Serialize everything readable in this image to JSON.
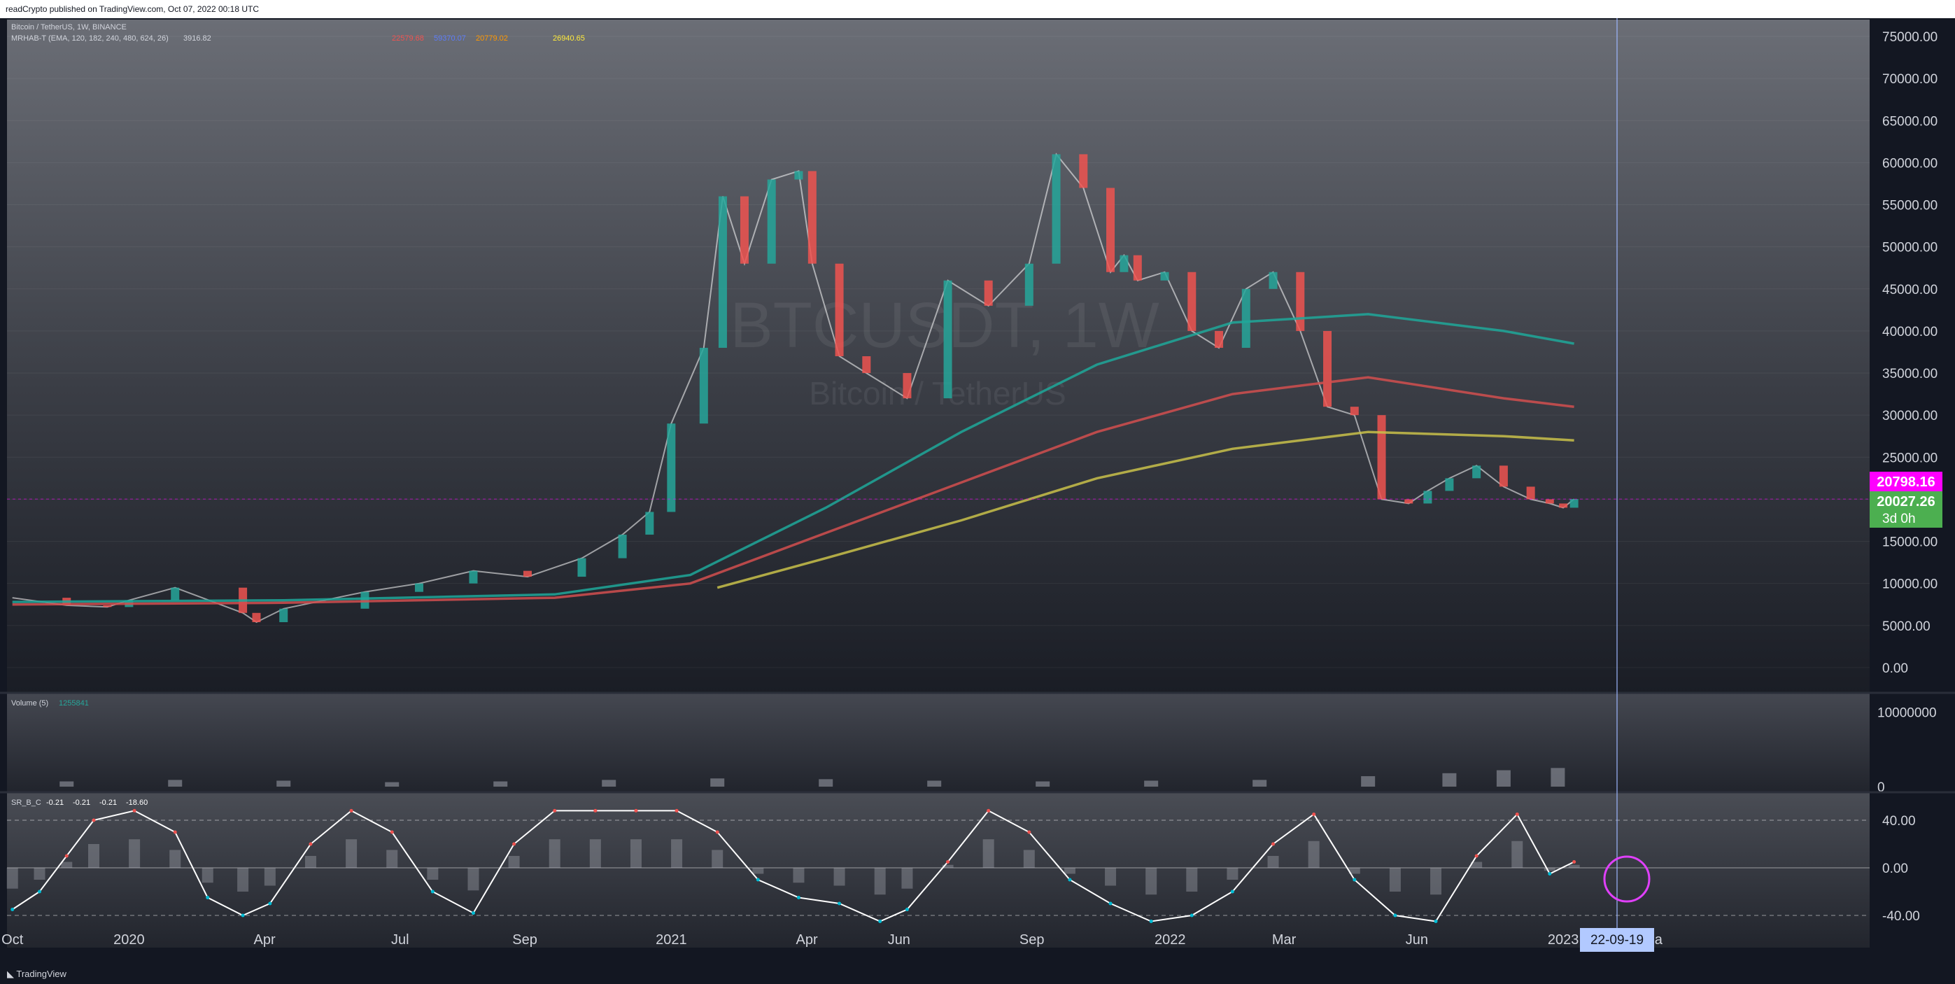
{
  "header": {
    "publisher_line": "readCrypto published on TradingView.com, Oct 07, 2022 00:18 UTC"
  },
  "footer": {
    "brand": "TradingView"
  },
  "legend": {
    "symbol_line": "Bitcoin / TetherUS, 1W, BINANCE",
    "indicator_line": "MRHAB-T (EMA, 120, 182, 240, 480, 624, 26)",
    "indicator_values": [
      "3916.82",
      "22579.68",
      "59370.07",
      "20779.02",
      "26940.65"
    ],
    "volume_label": "Volume (5)",
    "volume_value": "1255841",
    "osc_label": "SR_B_C",
    "osc_values": [
      "-0.21",
      "-0.21",
      "-0.21",
      "-18.60"
    ]
  },
  "watermark": {
    "symbol": "BTCUSDT, 1W",
    "name": "Bitcoin / TetherUS"
  },
  "price_tags": {
    "alert": "20798.16",
    "last": "20027.26",
    "countdown": "3d 0h"
  },
  "cursor_date": "22-09-19",
  "colors": {
    "background": "#131722",
    "up": "#26a69a",
    "down": "#ef5350",
    "text": "#d1d4dc",
    "ema_cyan": "#1fa89a",
    "ema_red": "#d24f4f",
    "ema_yellow": "#c9c14a",
    "alert_tag": "#ff00ff",
    "last_tag": "#4caf50",
    "osc_line_up": "#ffffff",
    "osc_line_down": "#00bcd4"
  },
  "chart_data": [
    {
      "type": "line",
      "panel": "price",
      "title": "BTCUSDT, 1W",
      "y_ticks": [
        0,
        5000,
        10000,
        15000,
        20000,
        25000,
        30000,
        35000,
        40000,
        45000,
        50000,
        55000,
        60000,
        65000,
        70000,
        75000
      ],
      "y_tick_labels": [
        "0.00",
        "5000.00",
        "10000.00",
        "15000.00",
        "20000.00",
        "25000.00",
        "30000.00",
        "35000.00",
        "40000.00",
        "45000.00",
        "50000.00",
        "55000.00",
        "60000.00",
        "65000.00",
        "70000.00",
        "75000.00"
      ],
      "ylim": [
        -3000,
        77000
      ],
      "x_ticks": [
        "Oct",
        "2020",
        "Apr",
        "Jul",
        "Sep",
        "2021",
        "Apr",
        "Jun",
        "Sep",
        "2022",
        "Mar",
        "Jun",
        "2023",
        "Ma"
      ],
      "x_tick_pos": [
        0.0,
        0.43,
        0.93,
        1.43,
        1.89,
        2.43,
        2.93,
        3.27,
        3.76,
        4.27,
        4.69,
        5.18,
        5.72,
        6.05
      ],
      "xlim": [
        -0.02,
        6.85
      ],
      "series": [
        {
          "name": "close",
          "role": "price",
          "x": [
            0.0,
            0.2,
            0.35,
            0.43,
            0.6,
            0.85,
            0.9,
            1.0,
            1.3,
            1.5,
            1.7,
            1.9,
            2.1,
            2.25,
            2.35,
            2.43,
            2.55,
            2.62,
            2.7,
            2.8,
            2.9,
            2.95,
            3.05,
            3.15,
            3.3,
            3.45,
            3.6,
            3.75,
            3.85,
            3.95,
            4.05,
            4.1,
            4.15,
            4.25,
            4.35,
            4.45,
            4.55,
            4.65,
            4.75,
            4.85,
            4.95,
            5.05,
            5.15,
            5.22,
            5.3,
            5.4,
            5.5,
            5.6,
            5.67,
            5.72,
            5.76
          ],
          "values": [
            8300,
            7400,
            7200,
            8000,
            9500,
            6500,
            5400,
            7000,
            9000,
            10000,
            11500,
            10800,
            13000,
            15800,
            18500,
            29000,
            38000,
            56000,
            48000,
            58000,
            59000,
            48000,
            37000,
            35000,
            32000,
            46000,
            43000,
            48000,
            61000,
            57000,
            47000,
            49000,
            46000,
            47000,
            40000,
            38000,
            45000,
            47000,
            40000,
            31000,
            30000,
            20000,
            19500,
            21000,
            22500,
            24000,
            21500,
            20000,
            19500,
            19000,
            20027
          ]
        },
        {
          "name": "EMA 120",
          "role": "ema",
          "x": [
            0,
            1,
            2,
            2.5,
            3,
            3.5,
            4,
            4.5,
            5,
            5.5,
            5.76
          ],
          "values": [
            7800,
            8000,
            8700,
            11000,
            19000,
            28000,
            36000,
            41000,
            42000,
            40000,
            38500
          ]
        },
        {
          "name": "EMA 182",
          "role": "ema",
          "x": [
            0,
            1,
            2,
            2.5,
            3,
            3.5,
            4,
            4.5,
            5,
            5.5,
            5.76
          ],
          "values": [
            7500,
            7700,
            8300,
            10000,
            16000,
            22000,
            28000,
            32500,
            34500,
            32000,
            31000
          ]
        },
        {
          "name": "EMA 240",
          "role": "ema",
          "x": [
            2.6,
            3,
            3.5,
            4,
            4.5,
            5,
            5.5,
            5.76
          ],
          "values": [
            9500,
            13000,
            17500,
            22500,
            26000,
            28000,
            27500,
            27000
          ]
        }
      ]
    },
    {
      "type": "bar",
      "panel": "volume",
      "y_ticks": [
        0,
        10000000
      ],
      "y_tick_labels": [
        "0",
        "10000000"
      ],
      "ylim": [
        0,
        12000000
      ],
      "x": [
        0.2,
        0.6,
        1.0,
        1.4,
        1.8,
        2.2,
        2.6,
        3.0,
        3.4,
        3.8,
        4.2,
        4.6,
        5.0,
        5.3,
        5.5,
        5.7
      ],
      "values": [
        700000,
        900000,
        800000,
        600000,
        700000,
        900000,
        1100000,
        1000000,
        800000,
        700000,
        800000,
        900000,
        1400000,
        1800000,
        2200000,
        2500000
      ]
    },
    {
      "type": "line",
      "panel": "oscillator",
      "y_ticks": [
        -40,
        0,
        40
      ],
      "y_tick_labels": [
        "-40.00",
        "0.00",
        "40.00"
      ],
      "ylim": [
        -60,
        60
      ],
      "x": [
        0.0,
        0.1,
        0.2,
        0.3,
        0.45,
        0.6,
        0.72,
        0.85,
        0.95,
        1.1,
        1.25,
        1.4,
        1.55,
        1.7,
        1.85,
        2.0,
        2.15,
        2.3,
        2.45,
        2.6,
        2.75,
        2.9,
        3.05,
        3.2,
        3.3,
        3.45,
        3.6,
        3.75,
        3.9,
        4.05,
        4.2,
        4.35,
        4.5,
        4.65,
        4.8,
        4.95,
        5.1,
        5.25,
        5.4,
        5.55,
        5.67,
        5.76
      ],
      "values": [
        -35,
        -20,
        10,
        40,
        48,
        30,
        -25,
        -40,
        -30,
        20,
        48,
        30,
        -20,
        -38,
        20,
        48,
        48,
        48,
        48,
        30,
        -10,
        -25,
        -30,
        -45,
        -35,
        5,
        48,
        30,
        -10,
        -30,
        -45,
        -40,
        -20,
        20,
        45,
        -10,
        -40,
        -45,
        10,
        45,
        -5,
        5
      ]
    }
  ]
}
